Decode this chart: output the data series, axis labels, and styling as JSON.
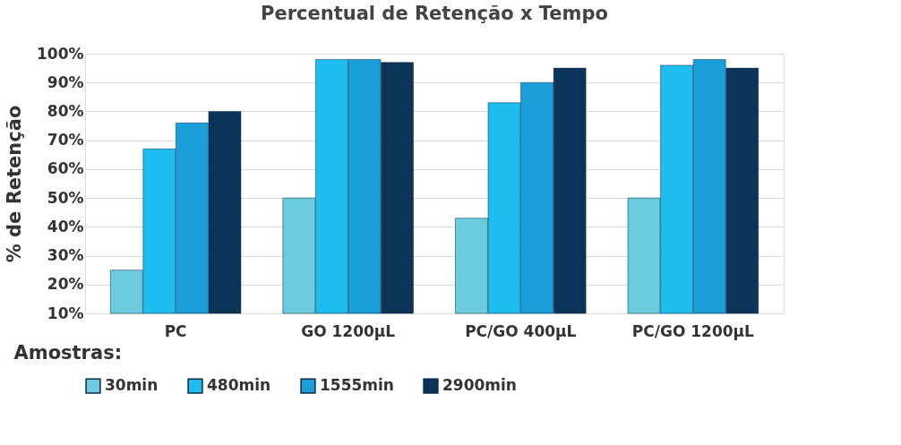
{
  "chart_data": {
    "type": "bar",
    "title": "Percentual de Retenção x Tempo",
    "xlabel": "Amostras:",
    "ylabel": "% de Retenção",
    "categories": [
      "PC",
      "GO 1200µL",
      "PC/GO 400µL",
      "PC/GO 1200µL"
    ],
    "series": [
      {
        "name": "30min",
        "color": "#6ccbdf",
        "values": [
          25,
          50,
          43,
          50
        ]
      },
      {
        "name": "480min",
        "color": "#1ebdf0",
        "values": [
          67,
          98,
          83,
          96
        ]
      },
      {
        "name": "1555min",
        "color": "#1a9fd8",
        "values": [
          76,
          98,
          90,
          98
        ]
      },
      {
        "name": "2900min",
        "color": "#0c3358",
        "values": [
          80,
          97,
          95,
          95
        ]
      }
    ],
    "ylim": [
      10,
      100
    ],
    "yticks": [
      {
        "value": 10,
        "label": "10%"
      },
      {
        "value": 20,
        "label": "20%"
      },
      {
        "value": 30,
        "label": "30%"
      },
      {
        "value": 40,
        "label": "40%"
      },
      {
        "value": 50,
        "label": "50%"
      },
      {
        "value": 60,
        "label": "60%"
      },
      {
        "value": 70,
        "label": "70%"
      },
      {
        "value": 80,
        "label": "80%"
      },
      {
        "value": 90,
        "label": "90%"
      },
      {
        "value": 100,
        "label": "100%"
      }
    ],
    "grid": "y",
    "legend": "bottom"
  }
}
